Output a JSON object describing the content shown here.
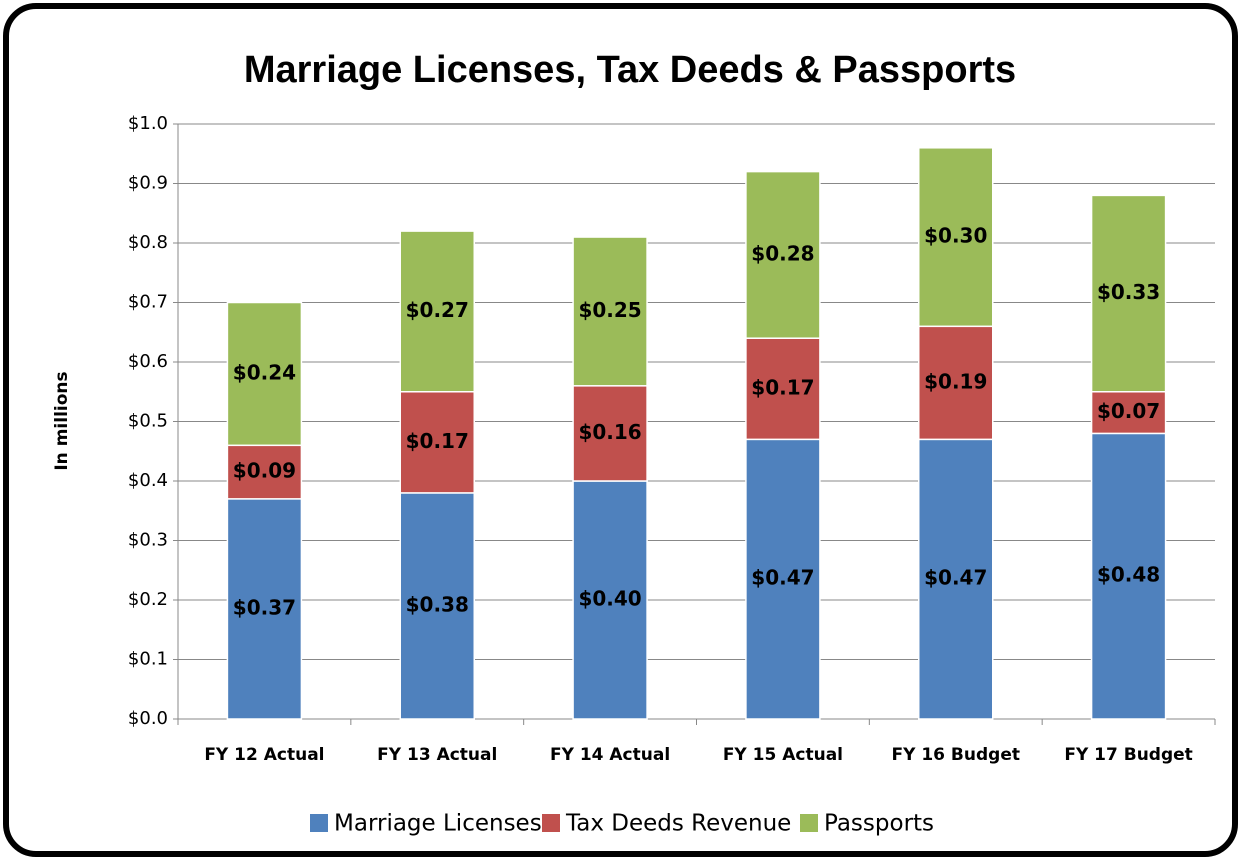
{
  "chart_data": {
    "type": "stacked_bar",
    "title": "Marriage Licenses, Tax Deeds & Passports",
    "y_label": "In millions",
    "categories": [
      "FY 12 Actual",
      "FY 13 Actual",
      "FY 14 Actual",
      "FY 15 Actual",
      "FY 16 Budget",
      "FY 17 Budget"
    ],
    "series": [
      {
        "name": "Marriage Licenses",
        "color": "#4f81bd",
        "values": [
          0.37,
          0.38,
          0.4,
          0.47,
          0.47,
          0.48
        ],
        "value_labels": [
          "$0.37",
          "$0.38",
          "$0.40",
          "$0.47",
          "$0.47",
          "$0.48"
        ]
      },
      {
        "name": "Tax Deeds Revenue",
        "color": "#c0504d",
        "values": [
          0.09,
          0.17,
          0.16,
          0.17,
          0.19,
          0.07
        ],
        "value_labels": [
          "$0.09",
          "$0.17",
          "$0.16",
          "$0.17",
          "$0.19",
          "$0.07"
        ]
      },
      {
        "name": "Passports",
        "color": "#9bbb59",
        "values": [
          0.24,
          0.27,
          0.25,
          0.28,
          0.3,
          0.33
        ],
        "value_labels": [
          "$0.24",
          "$0.27",
          "$0.25",
          "$0.28",
          "$0.30",
          "$0.33"
        ]
      }
    ],
    "ylim": [
      0,
      1.0
    ],
    "yticks": [
      {
        "value": 0,
        "label": "$0.0"
      },
      {
        "value": 0.1,
        "label": "$0.1"
      },
      {
        "value": 0.2,
        "label": "$0.2"
      },
      {
        "value": 0.3,
        "label": "$0.3"
      },
      {
        "value": 0.4,
        "label": "$0.4"
      },
      {
        "value": 0.5,
        "label": "$0.5"
      },
      {
        "value": 0.6,
        "label": "$0.6"
      },
      {
        "value": 0.7,
        "label": "$0.7"
      },
      {
        "value": 0.8,
        "label": "$0.8"
      },
      {
        "value": 0.9,
        "label": "$0.9"
      },
      {
        "value": 1.0,
        "label": "$1.0"
      }
    ],
    "grid": true,
    "legend": "bottom"
  }
}
